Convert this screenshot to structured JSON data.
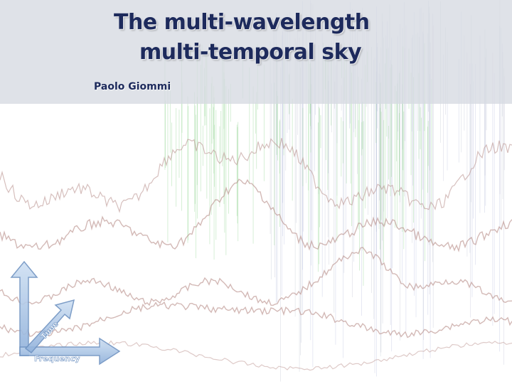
{
  "slide": {
    "title_line_1": "The multi-wavelength",
    "title_line_2": "multi-temporal sky",
    "author": "Paolo Giommi"
  },
  "axes_logo": {
    "time_label": "Time",
    "frequency_label": "Frequency"
  },
  "colors": {
    "title_text": "#1d2a5c",
    "title_band": "#d6dae2",
    "curve_brown": "#b58a86",
    "curve_green": "#8fd48f",
    "curve_blue": "#8e97c8",
    "arrow_fill": "#a9c4e4",
    "arrow_stroke": "#6f93c2"
  },
  "icons": [
    "time-axis-arrow-icon",
    "frequency-axis-arrow-icon",
    "diagonal-axis-arrow-icon"
  ]
}
